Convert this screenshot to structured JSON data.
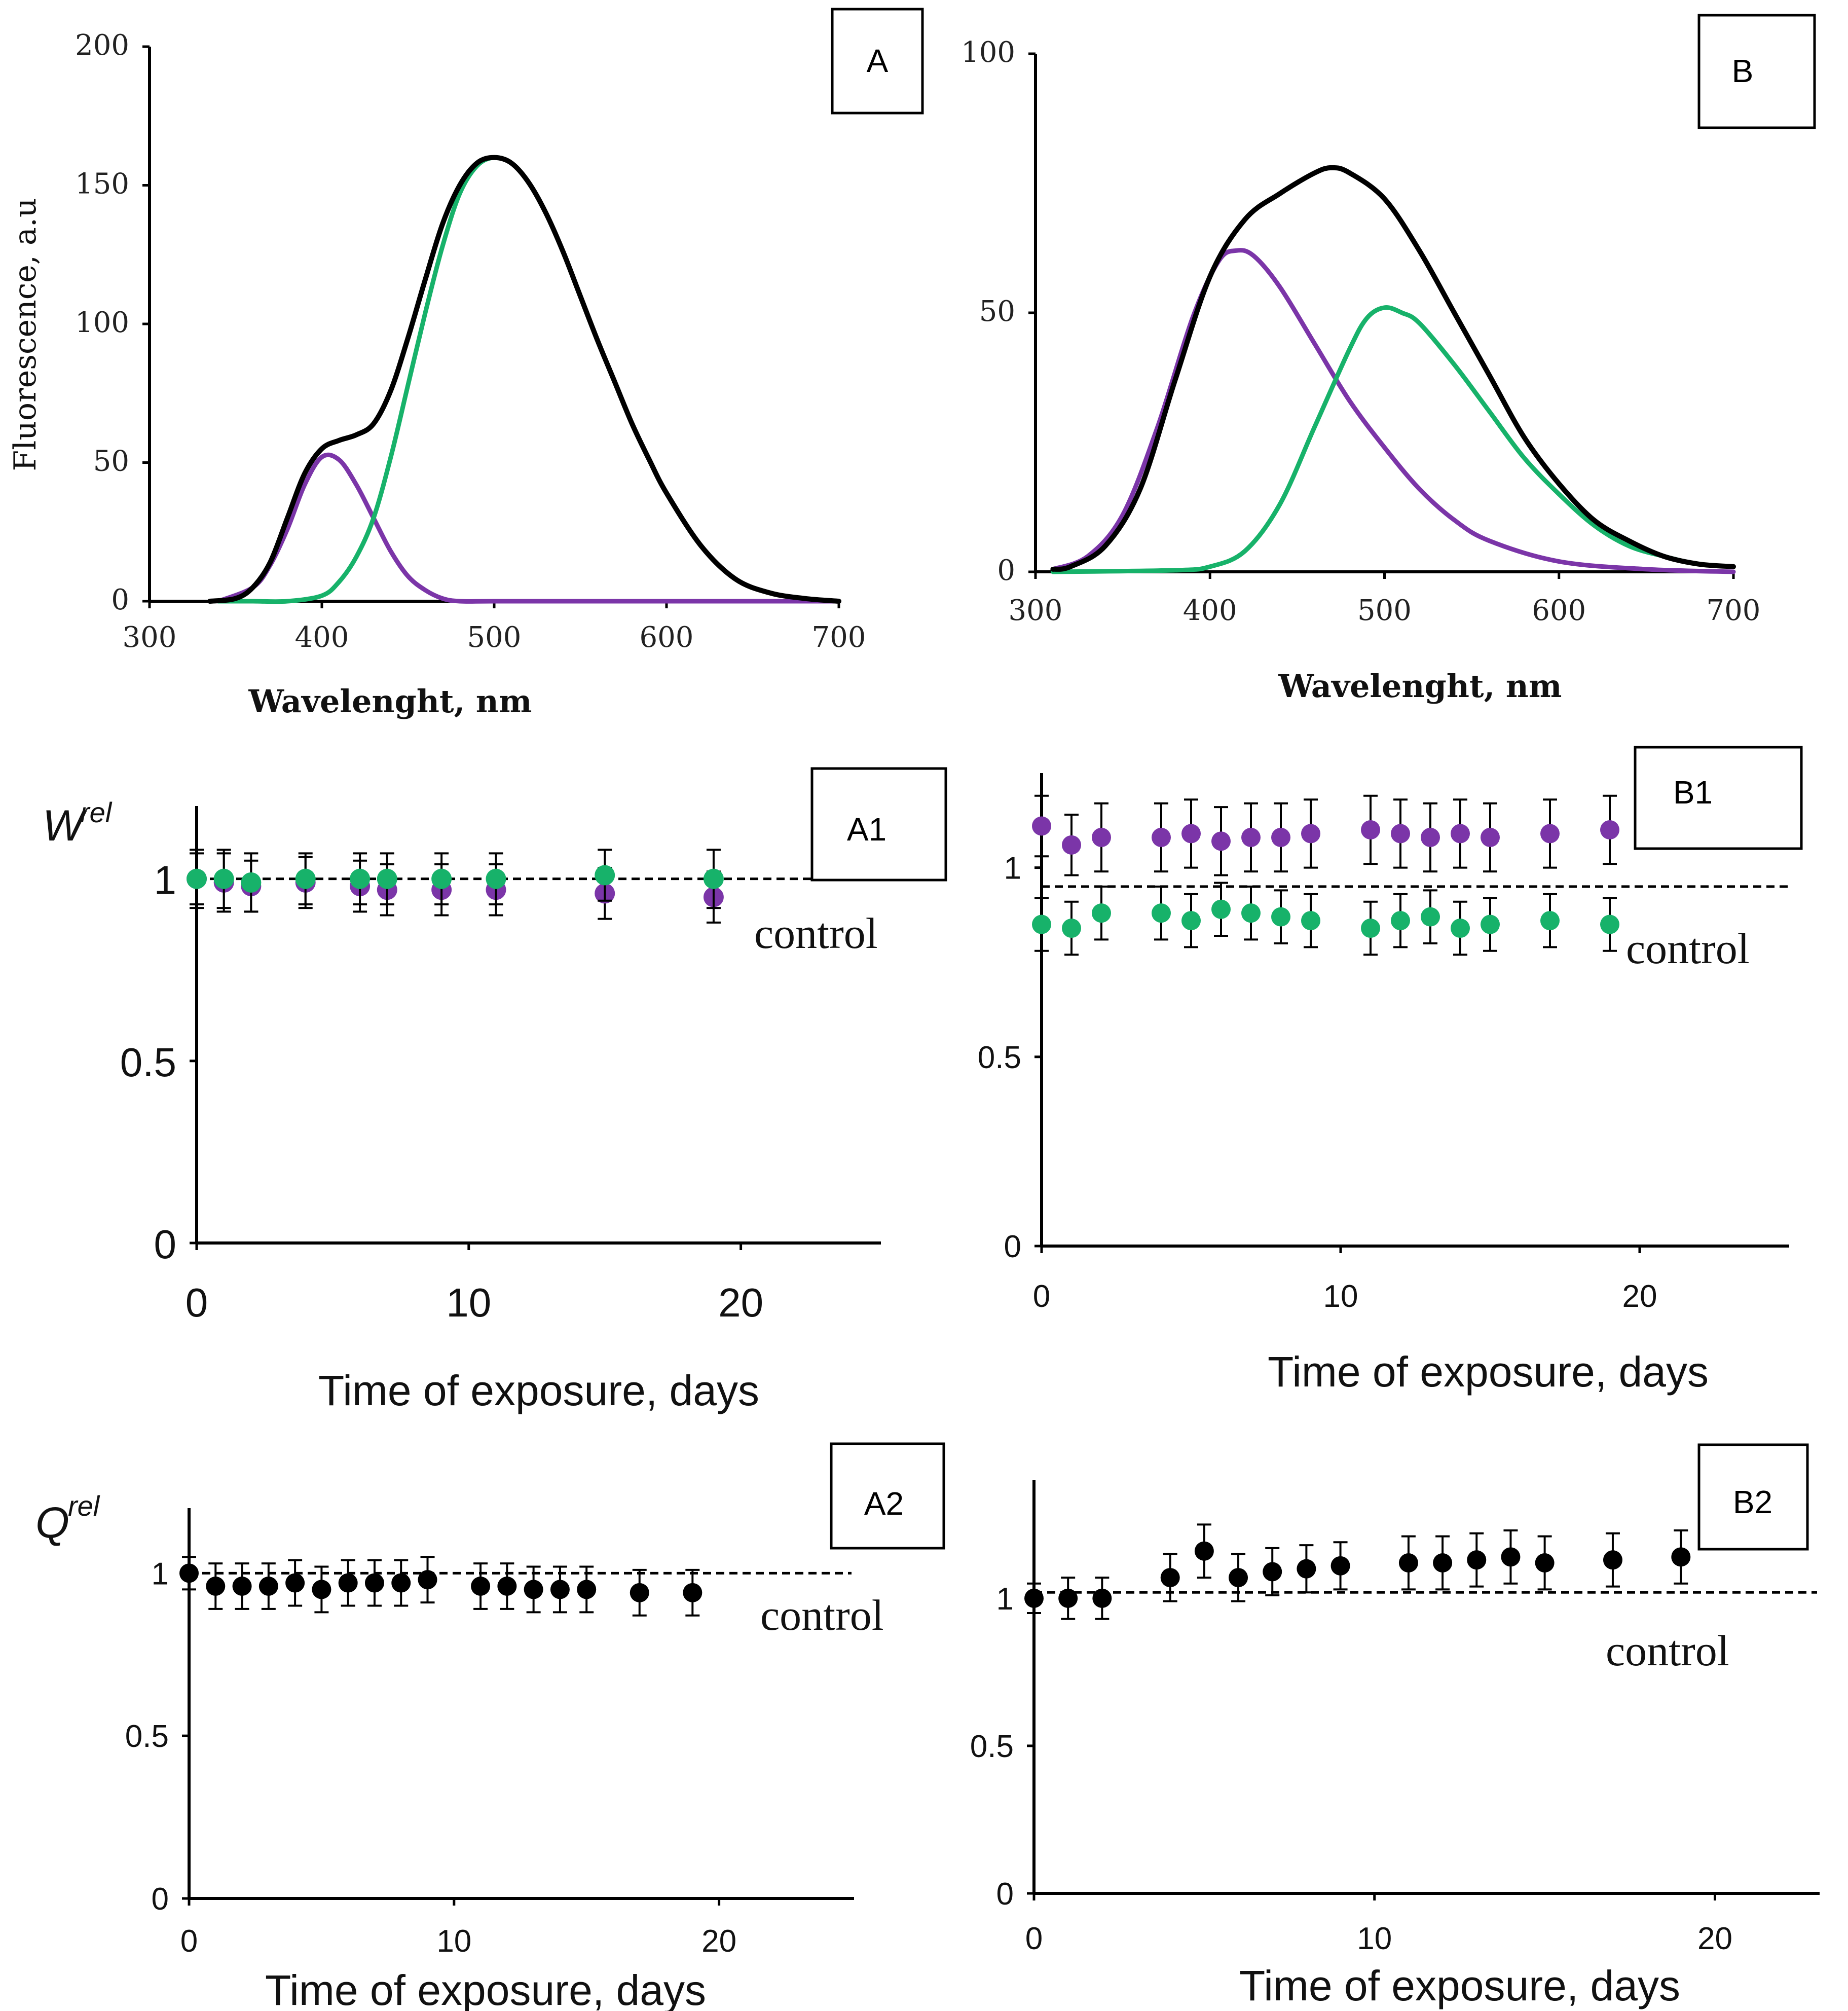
{
  "colors": {
    "purple": "#7b35a8",
    "green": "#17b26a",
    "black": "#000000"
  },
  "chart_data": [
    {
      "id": "A",
      "type": "line",
      "panel_label": "A",
      "xlabel": "Wavelenght, nm",
      "ylabel": "Fluorescence, a.u",
      "xlim": [
        300,
        700
      ],
      "ylim": [
        0,
        200
      ],
      "xticks": [
        300,
        400,
        500,
        600,
        700
      ],
      "yticks": [
        0,
        50,
        100,
        150,
        200
      ],
      "series": [
        {
          "name": "total",
          "color": "black",
          "x": [
            335,
            350,
            360,
            370,
            380,
            390,
            400,
            410,
            420,
            430,
            440,
            450,
            460,
            470,
            480,
            490,
            500,
            510,
            520,
            530,
            540,
            550,
            560,
            570,
            580,
            590,
            600,
            620,
            640,
            660,
            680,
            700
          ],
          "y": [
            0,
            1,
            5,
            14,
            30,
            46,
            55,
            58,
            60,
            64,
            76,
            95,
            116,
            136,
            150,
            158,
            160,
            158,
            151,
            140,
            126,
            110,
            94,
            79,
            64,
            51,
            39,
            20,
            8,
            3,
            1,
            0
          ]
        },
        {
          "name": "purple band",
          "color": "purple",
          "x": [
            340,
            360,
            370,
            380,
            390,
            400,
            410,
            420,
            430,
            440,
            450,
            460,
            470,
            480,
            500,
            550,
            700
          ],
          "y": [
            0,
            5,
            13,
            26,
            42,
            52,
            51,
            42,
            30,
            18,
            9,
            4,
            1,
            0,
            0,
            0,
            0
          ]
        },
        {
          "name": "green band",
          "color": "green",
          "x": [
            340,
            360,
            380,
            400,
            410,
            420,
            430,
            440,
            450,
            460,
            470,
            480,
            490,
            500,
            510,
            520,
            530,
            540,
            550,
            560,
            570,
            580,
            590,
            600,
            620,
            640,
            660,
            680,
            700
          ],
          "y": [
            0,
            0,
            0,
            2,
            7,
            16,
            30,
            52,
            78,
            104,
            128,
            147,
            157,
            160,
            158,
            151,
            140,
            126,
            110,
            94,
            79,
            64,
            51,
            39,
            20,
            8,
            3,
            1,
            0
          ]
        }
      ]
    },
    {
      "id": "B",
      "type": "line",
      "panel_label": "B",
      "xlabel": "Wavelenght, nm",
      "ylabel": "",
      "xlim": [
        300,
        700
      ],
      "ylim": [
        0,
        100
      ],
      "xticks": [
        300,
        400,
        500,
        600,
        700
      ],
      "yticks": [
        0,
        50,
        100
      ],
      "series": [
        {
          "name": "total",
          "color": "black",
          "x": [
            310,
            320,
            340,
            360,
            380,
            400,
            420,
            440,
            460,
            470,
            480,
            500,
            520,
            540,
            560,
            580,
            600,
            620,
            640,
            660,
            680,
            700
          ],
          "y": [
            0.5,
            1,
            5,
            16,
            37,
            57,
            68,
            73,
            77,
            78,
            77,
            72,
            62,
            50,
            38,
            26,
            17,
            10,
            6,
            3,
            1.5,
            1
          ]
        },
        {
          "name": "purple band",
          "color": "purple",
          "x": [
            310,
            330,
            350,
            370,
            390,
            405,
            415,
            425,
            440,
            460,
            480,
            500,
            520,
            540,
            560,
            600,
            650,
            700
          ],
          "y": [
            0.5,
            3,
            11,
            28,
            49,
            60,
            62,
            61,
            55,
            44,
            33,
            24,
            16,
            10,
            6,
            2,
            0.5,
            0
          ]
        },
        {
          "name": "green band",
          "color": "green",
          "x": [
            310,
            380,
            400,
            420,
            440,
            460,
            480,
            490,
            500,
            510,
            520,
            540,
            560,
            580,
            600,
            620,
            640,
            660,
            680,
            700
          ],
          "y": [
            0,
            0.3,
            1,
            4,
            13,
            28,
            43,
            49,
            51,
            50,
            48,
            40,
            31,
            22,
            15,
            9,
            5,
            3,
            1.5,
            1
          ]
        }
      ]
    },
    {
      "id": "A1",
      "type": "scatter",
      "panel_label": "A1",
      "ylabel": "W",
      "ylabel_sup": "rel",
      "xlabel": "Time of exposure, days",
      "xlim": [
        0,
        25
      ],
      "ylim": [
        0,
        1.2
      ],
      "xticks": [
        0,
        10,
        20
      ],
      "yticks": [
        0,
        0.5,
        1
      ],
      "tick_labels_y": [
        "0",
        "0.5",
        "1"
      ],
      "control_label": "control",
      "control_value": 1.0,
      "series": [
        {
          "name": "purple",
          "color": "purple",
          "x": [
            0,
            1,
            2,
            4,
            6,
            7,
            9,
            11,
            15,
            19
          ],
          "y": [
            1.0,
            0.99,
            0.98,
            0.99,
            0.98,
            0.97,
            0.97,
            0.97,
            0.96,
            0.95
          ],
          "err": [
            0.07,
            0.08,
            0.07,
            0.07,
            0.07,
            0.07,
            0.07,
            0.07,
            0.07,
            0.07
          ]
        },
        {
          "name": "green",
          "color": "green",
          "x": [
            0,
            1,
            2,
            4,
            6,
            7,
            9,
            11,
            15,
            19
          ],
          "y": [
            1.0,
            1.0,
            0.99,
            1.0,
            1.0,
            1.0,
            1.0,
            1.0,
            1.01,
            1.0
          ],
          "err": [
            0.08,
            0.08,
            0.08,
            0.07,
            0.07,
            0.07,
            0.07,
            0.07,
            0.07,
            0.08
          ]
        }
      ]
    },
    {
      "id": "B1",
      "type": "scatter",
      "panel_label": "B1",
      "ylabel": "",
      "xlabel": "Time of exposure, days",
      "xlim": [
        0,
        25
      ],
      "ylim": [
        0,
        1.25
      ],
      "xticks": [
        0,
        10,
        20
      ],
      "yticks": [
        0,
        0.5,
        1
      ],
      "tick_labels_y": [
        "0",
        "0.5",
        "1"
      ],
      "control_label": "control",
      "control_value": 0.95,
      "series": [
        {
          "name": "purple",
          "color": "purple",
          "x": [
            0,
            1,
            2,
            4,
            5,
            6,
            7,
            8,
            9,
            11,
            12,
            13,
            14,
            15,
            17,
            19
          ],
          "y": [
            1.11,
            1.06,
            1.08,
            1.08,
            1.09,
            1.07,
            1.08,
            1.08,
            1.09,
            1.1,
            1.09,
            1.08,
            1.09,
            1.08,
            1.09,
            1.1
          ],
          "err": [
            0.08,
            0.08,
            0.09,
            0.09,
            0.09,
            0.09,
            0.09,
            0.09,
            0.09,
            0.09,
            0.09,
            0.09,
            0.09,
            0.09,
            0.09,
            0.09
          ]
        },
        {
          "name": "green",
          "color": "green",
          "x": [
            0,
            1,
            2,
            4,
            5,
            6,
            7,
            8,
            9,
            11,
            12,
            13,
            14,
            15,
            17,
            19
          ],
          "y": [
            0.85,
            0.84,
            0.88,
            0.88,
            0.86,
            0.89,
            0.88,
            0.87,
            0.86,
            0.84,
            0.86,
            0.87,
            0.84,
            0.85,
            0.86,
            0.85
          ],
          "err": [
            0.07,
            0.07,
            0.07,
            0.07,
            0.07,
            0.07,
            0.07,
            0.07,
            0.07,
            0.07,
            0.07,
            0.07,
            0.07,
            0.07,
            0.07,
            0.07
          ]
        }
      ]
    },
    {
      "id": "A2",
      "type": "scatter",
      "panel_label": "A2",
      "ylabel": "Q",
      "ylabel_sup": "rel",
      "xlabel": "Time of exposure, days",
      "xlim": [
        0,
        25
      ],
      "ylim": [
        0,
        1.2
      ],
      "xticks": [
        0,
        10,
        20
      ],
      "yticks": [
        0,
        0.5,
        1
      ],
      "tick_labels_y": [
        "0",
        "0.5",
        "1"
      ],
      "control_label": "control",
      "control_value": 1.0,
      "series": [
        {
          "name": "black",
          "color": "black",
          "x": [
            0,
            1,
            2,
            3,
            4,
            5,
            6,
            7,
            8,
            9,
            11,
            12,
            13,
            14,
            15,
            17,
            19
          ],
          "y": [
            1.0,
            0.96,
            0.96,
            0.96,
            0.97,
            0.95,
            0.97,
            0.97,
            0.97,
            0.98,
            0.96,
            0.96,
            0.95,
            0.95,
            0.95,
            0.94,
            0.94
          ],
          "err": [
            0.05,
            0.07,
            0.07,
            0.07,
            0.07,
            0.07,
            0.07,
            0.07,
            0.07,
            0.07,
            0.07,
            0.07,
            0.07,
            0.07,
            0.07,
            0.07,
            0.07
          ]
        }
      ]
    },
    {
      "id": "B2",
      "type": "scatter",
      "panel_label": "B2",
      "ylabel": "",
      "xlabel": "Time of exposure, days",
      "xlim": [
        0,
        23
      ],
      "ylim": [
        0,
        1.4
      ],
      "xticks": [
        0,
        10,
        20
      ],
      "yticks": [
        0,
        0.5,
        1
      ],
      "tick_labels_y": [
        "0",
        "0.5",
        "1"
      ],
      "control_label": "control",
      "control_value": 1.02,
      "series": [
        {
          "name": "black",
          "color": "black",
          "x": [
            0,
            1,
            2,
            4,
            5,
            6,
            7,
            8,
            9,
            11,
            12,
            13,
            14,
            15,
            17,
            19
          ],
          "y": [
            1.0,
            1.0,
            1.0,
            1.07,
            1.16,
            1.07,
            1.09,
            1.1,
            1.11,
            1.12,
            1.12,
            1.13,
            1.14,
            1.12,
            1.13,
            1.14
          ],
          "err": [
            0.05,
            0.07,
            0.07,
            0.08,
            0.09,
            0.08,
            0.08,
            0.08,
            0.08,
            0.09,
            0.09,
            0.09,
            0.09,
            0.09,
            0.09,
            0.09
          ]
        }
      ]
    }
  ]
}
